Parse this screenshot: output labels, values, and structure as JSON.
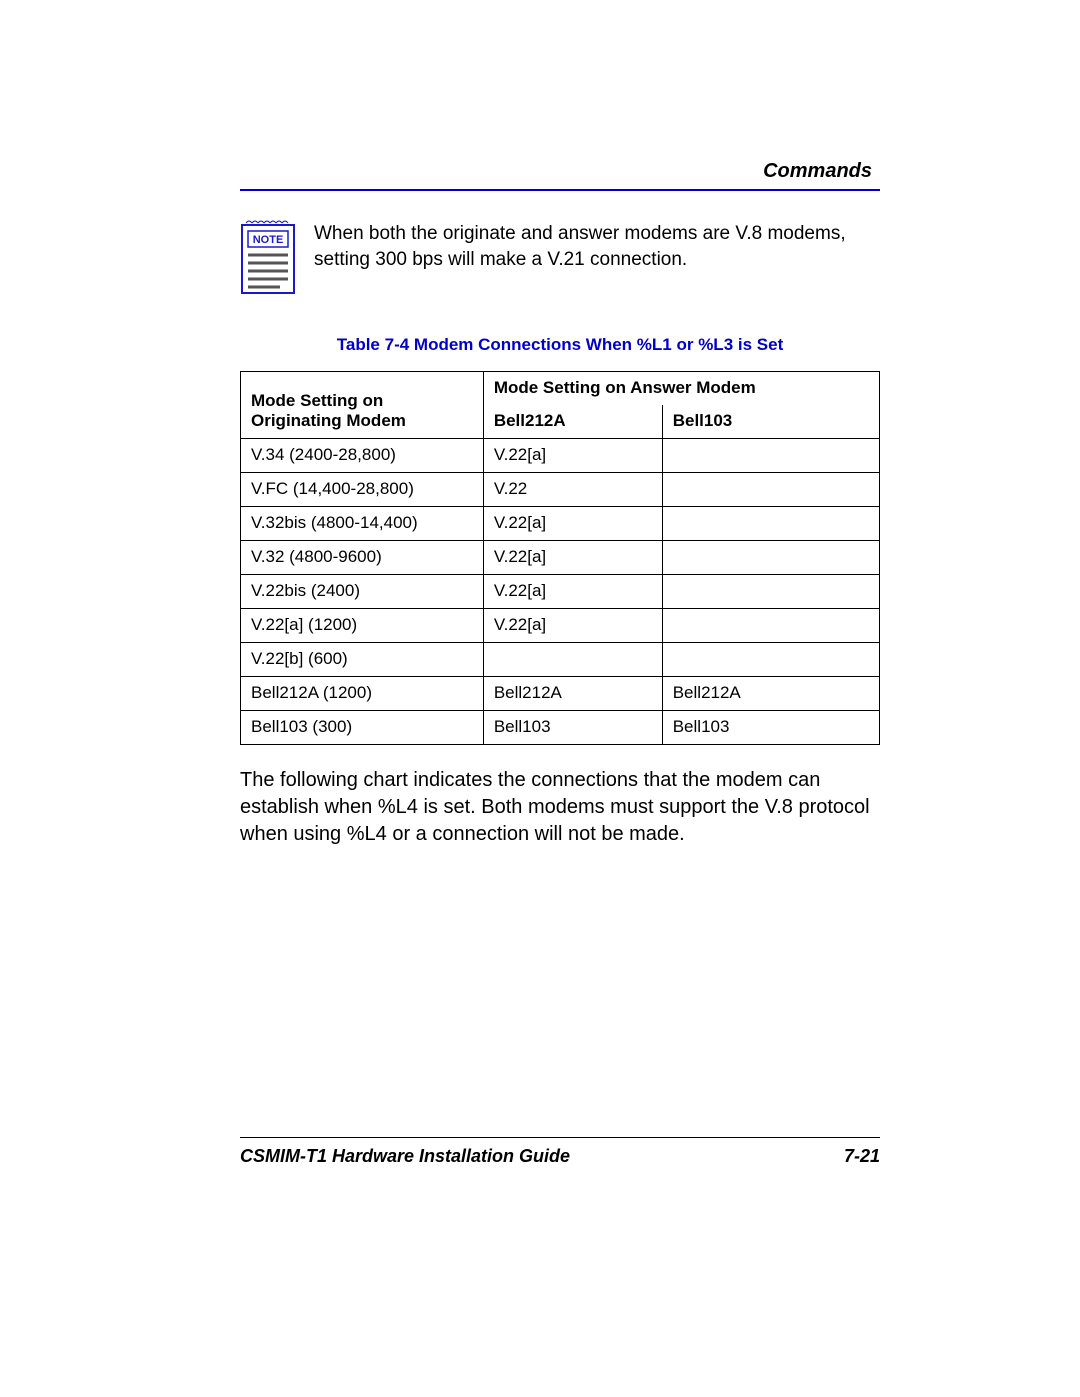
{
  "section_title": "Commands",
  "note": {
    "label": "NOTE",
    "text": "When both the originate and answer modems are V.8 modems, setting 300 bps will make a V.21 connection."
  },
  "table": {
    "caption": "Table 7-4    Modem Connections When %L1 or %L3 is Set",
    "header_col1_line1": "Mode Setting on",
    "header_col1_line2": "Originating Modem",
    "header_span": "Mode Setting on Answer Modem",
    "header_col2": "Bell212A",
    "header_col3": "Bell103",
    "rows": [
      {
        "c0": "V.34 (2400-28,800)",
        "c1": "V.22[a]",
        "c2": ""
      },
      {
        "c0": "V.FC (14,400-28,800)",
        "c1": "V.22",
        "c2": ""
      },
      {
        "c0": "V.32bis (4800-14,400)",
        "c1": "V.22[a]",
        "c2": ""
      },
      {
        "c0": "V.32 (4800-9600)",
        "c1": "V.22[a]",
        "c2": ""
      },
      {
        "c0": "V.22bis (2400)",
        "c1": "V.22[a]",
        "c2": ""
      },
      {
        "c0": "V.22[a] (1200)",
        "c1": "V.22[a]",
        "c2": ""
      },
      {
        "c0": "V.22[b] (600)",
        "c1": "",
        "c2": ""
      },
      {
        "c0": "Bell212A (1200)",
        "c1": "Bell212A",
        "c2": "Bell212A"
      },
      {
        "c0": "Bell103 (300)",
        "c1": "Bell103",
        "c2": "Bell103"
      }
    ],
    "col_widths": [
      "38%",
      "28%",
      "34%"
    ]
  },
  "body_para": "The following chart indicates the connections that the modem can establish when %L4 is set. Both modems must support the V.8 protocol when using %L4 or a connection will not be made.",
  "footer": {
    "left": "CSMIM-T1 Hardware Installation Guide",
    "right": "7-21"
  },
  "colors": {
    "accent": "#0000cc",
    "icon_border": "#1a1acc",
    "text_line": "#555555"
  }
}
